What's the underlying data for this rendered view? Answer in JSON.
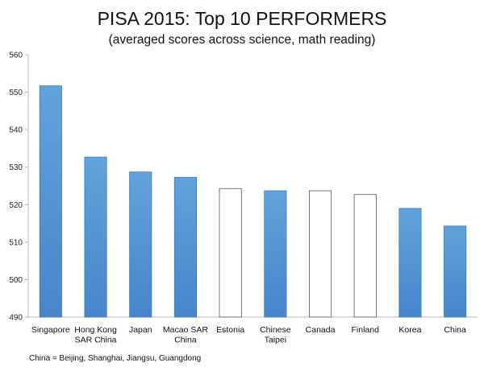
{
  "chart_data": {
    "type": "bar",
    "title": "PISA 2015: Top 10 PERFORMERS",
    "subtitle": "(averaged scores across science, math reading)",
    "categories": [
      [
        "Singapore"
      ],
      [
        "Hong Kong",
        "SAR China"
      ],
      [
        "Japan"
      ],
      [
        "Macao SAR",
        "China"
      ],
      [
        "Estonia"
      ],
      [
        "Chinese",
        "Taipei"
      ],
      [
        "Canada"
      ],
      [
        "Finland"
      ],
      [
        "Korea"
      ],
      [
        "China"
      ]
    ],
    "values": [
      551.7,
      532.7,
      528.7,
      527.3,
      524.3,
      523.7,
      523.7,
      522.7,
      519.0,
      514.3
    ],
    "highlighted": [
      true,
      true,
      true,
      true,
      false,
      true,
      false,
      false,
      true,
      true
    ],
    "ylim": [
      490,
      560
    ],
    "yticks": [
      490,
      500,
      510,
      520,
      530,
      540,
      550,
      560
    ],
    "grid": false,
    "legend": "none",
    "footnote": "China = Beijing, Shanghai, Jiangsu, Guangdong"
  },
  "colors": {
    "bar_fill_top": "#62a2dc",
    "bar_fill_bottom": "#4686cb",
    "bar_outline": "#3e7ab8",
    "bar_hollow_fill": "#ffffff",
    "bar_hollow_outline": "#555555",
    "axis": "#bbbbbb"
  }
}
